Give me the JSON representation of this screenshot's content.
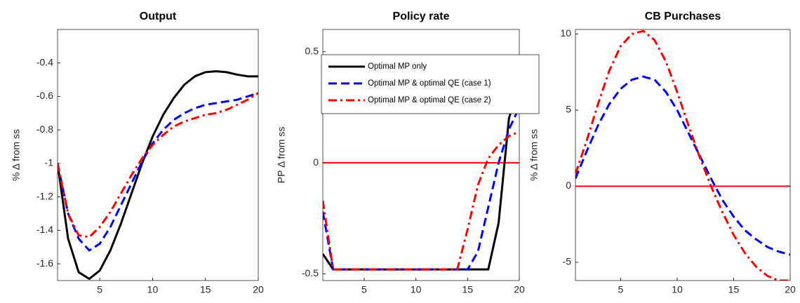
{
  "chart_data": [
    {
      "type": "line",
      "title": "Output",
      "y_label": "% Δ from ss",
      "x": [
        1,
        2,
        3,
        4,
        5,
        6,
        7,
        8,
        9,
        10,
        11,
        12,
        13,
        14,
        15,
        16,
        17,
        18,
        19,
        20
      ],
      "xlim": [
        1,
        20
      ],
      "xticks": [
        5,
        10,
        15,
        20
      ],
      "ylim": [
        -1.7,
        -0.2
      ],
      "yticks": [
        -1.6,
        -1.4,
        -1.2,
        -1,
        -0.8,
        -0.6,
        -0.4
      ],
      "series": [
        {
          "color": "#000000",
          "style": "solid",
          "values": [
            -1.0,
            -1.45,
            -1.65,
            -1.69,
            -1.64,
            -1.52,
            -1.36,
            -1.18,
            -1.0,
            -0.84,
            -0.71,
            -0.61,
            -0.53,
            -0.48,
            -0.455,
            -0.45,
            -0.455,
            -0.47,
            -0.48,
            -0.48
          ]
        },
        {
          "color": "#0000ff",
          "style": "dashed",
          "values": [
            -1.0,
            -1.3,
            -1.45,
            -1.52,
            -1.48,
            -1.38,
            -1.25,
            -1.12,
            -0.99,
            -0.88,
            -0.8,
            -0.74,
            -0.7,
            -0.67,
            -0.65,
            -0.64,
            -0.63,
            -0.62,
            -0.6,
            -0.58
          ]
        },
        {
          "color": "#ff0000",
          "style": "dashdot",
          "values": [
            -1.0,
            -1.3,
            -1.43,
            -1.44,
            -1.38,
            -1.29,
            -1.18,
            -1.07,
            -0.97,
            -0.89,
            -0.83,
            -0.78,
            -0.75,
            -0.73,
            -0.71,
            -0.7,
            -0.68,
            -0.65,
            -0.62,
            -0.58
          ]
        }
      ]
    },
    {
      "type": "line",
      "title": "Policy rate",
      "y_label": "PP Δ from ss",
      "x": [
        1,
        2,
        3,
        4,
        5,
        6,
        7,
        8,
        9,
        10,
        11,
        12,
        13,
        14,
        15,
        16,
        17,
        18,
        19,
        20
      ],
      "xlim": [
        1,
        20
      ],
      "xticks": [
        5,
        10,
        15,
        20
      ],
      "ylim": [
        -0.53,
        0.6
      ],
      "yticks": [
        -0.5,
        0,
        0.5
      ],
      "hline": 0,
      "hline_color": "#ff0000",
      "legend": "top-left",
      "series": [
        {
          "name": "Optimal MP only",
          "color": "#000000",
          "style": "solid",
          "values": [
            -0.41,
            -0.48,
            -0.48,
            -0.48,
            -0.48,
            -0.48,
            -0.48,
            -0.48,
            -0.48,
            -0.48,
            -0.48,
            -0.48,
            -0.48,
            -0.48,
            -0.48,
            -0.48,
            -0.48,
            -0.27,
            0.2,
            0.35
          ]
        },
        {
          "name": "Optimal MP & optimal QE (case 1)",
          "color": "#0000ff",
          "style": "dashed",
          "values": [
            -0.22,
            -0.48,
            -0.48,
            -0.48,
            -0.48,
            -0.48,
            -0.48,
            -0.48,
            -0.48,
            -0.48,
            -0.48,
            -0.48,
            -0.48,
            -0.48,
            -0.48,
            -0.4,
            -0.2,
            0.0,
            0.15,
            0.25
          ]
        },
        {
          "name": "Optimal MP & optimal QE (case 2)",
          "color": "#ff0000",
          "style": "dashdot",
          "values": [
            -0.17,
            -0.48,
            -0.48,
            -0.48,
            -0.48,
            -0.48,
            -0.48,
            -0.48,
            -0.48,
            -0.48,
            -0.48,
            -0.48,
            -0.48,
            -0.48,
            -0.3,
            -0.1,
            0.02,
            0.08,
            0.12,
            0.14
          ]
        }
      ]
    },
    {
      "type": "line",
      "title": "CB Purchases",
      "y_label": "% Δ from ss",
      "x": [
        1,
        2,
        3,
        4,
        5,
        6,
        7,
        8,
        9,
        10,
        11,
        12,
        13,
        14,
        15,
        16,
        17,
        18,
        19,
        20
      ],
      "xlim": [
        1,
        20
      ],
      "xticks": [
        5,
        10,
        15,
        20
      ],
      "ylim": [
        -6.2,
        10.3
      ],
      "yticks": [
        -5,
        0,
        5,
        10
      ],
      "hline": 0,
      "hline_color": "#ff0000",
      "series": [
        {
          "color": "#0000ff",
          "style": "dashed",
          "values": [
            0.5,
            2.3,
            4.0,
            5.4,
            6.4,
            7.0,
            7.2,
            7.0,
            6.2,
            5.0,
            3.5,
            2.0,
            0.5,
            -0.9,
            -2.0,
            -2.9,
            -3.5,
            -4.0,
            -4.3,
            -4.5
          ]
        },
        {
          "color": "#ff0000",
          "style": "dashdot",
          "values": [
            0.8,
            3.0,
            5.4,
            7.6,
            9.2,
            10.0,
            10.2,
            9.6,
            8.2,
            6.2,
            4.0,
            1.9,
            0.0,
            -1.7,
            -3.2,
            -4.4,
            -5.3,
            -5.9,
            -6.2,
            -6.2
          ]
        }
      ]
    }
  ]
}
